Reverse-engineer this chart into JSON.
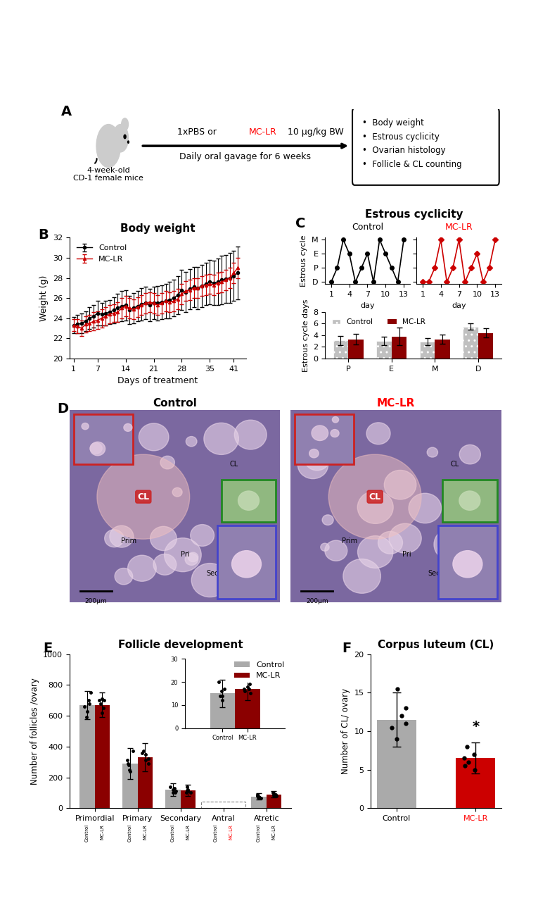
{
  "panel_A": {
    "bullet_items": [
      "Body weight",
      "Estrous cyclicity",
      "Ovarian histology",
      "Follicle & CL counting"
    ]
  },
  "panel_B": {
    "title": "Body weight",
    "xlabel": "Days of treatment",
    "ylabel": "Weight (g)",
    "ylim": [
      20,
      32
    ],
    "yticks": [
      20,
      22,
      24,
      26,
      28,
      30,
      32
    ],
    "xticks": [
      1,
      7,
      14,
      21,
      28,
      35,
      41
    ],
    "days": [
      1,
      2,
      3,
      4,
      5,
      6,
      7,
      8,
      9,
      10,
      11,
      12,
      13,
      14,
      15,
      16,
      17,
      18,
      19,
      20,
      21,
      22,
      23,
      24,
      25,
      26,
      27,
      28,
      29,
      30,
      31,
      32,
      33,
      34,
      35,
      36,
      37,
      38,
      39,
      40,
      41,
      42
    ],
    "control_mean": [
      23.3,
      23.4,
      23.5,
      23.7,
      24.0,
      24.2,
      24.5,
      24.4,
      24.5,
      24.6,
      24.8,
      25.0,
      25.2,
      25.3,
      24.8,
      25.0,
      25.2,
      25.4,
      25.5,
      25.3,
      25.5,
      25.5,
      25.6,
      25.7,
      25.8,
      26.0,
      26.3,
      26.8,
      26.6,
      26.9,
      27.1,
      27.0,
      27.2,
      27.4,
      27.6,
      27.5,
      27.6,
      27.8,
      27.9,
      28.0,
      28.2,
      28.5
    ],
    "control_err": [
      0.8,
      0.9,
      1.0,
      1.0,
      1.1,
      1.1,
      1.2,
      1.1,
      1.2,
      1.2,
      1.3,
      1.4,
      1.5,
      1.5,
      1.4,
      1.5,
      1.5,
      1.6,
      1.6,
      1.6,
      1.6,
      1.7,
      1.7,
      1.7,
      1.8,
      1.8,
      1.9,
      2.0,
      2.0,
      2.0,
      2.0,
      2.1,
      2.1,
      2.1,
      2.2,
      2.2,
      2.3,
      2.4,
      2.4,
      2.5,
      2.5,
      2.6
    ],
    "mclr_mean": [
      23.3,
      23.2,
      23.0,
      23.4,
      23.5,
      23.7,
      23.8,
      24.0,
      24.2,
      24.4,
      24.5,
      24.6,
      25.0,
      25.2,
      25.0,
      24.9,
      25.1,
      25.3,
      25.5,
      25.6,
      25.5,
      25.3,
      25.5,
      25.7,
      25.6,
      25.7,
      25.9,
      26.4,
      26.7,
      26.8,
      27.0,
      27.0,
      27.2,
      27.3,
      27.4,
      27.3,
      27.5,
      27.6,
      27.8,
      28.0,
      28.5,
      29.0
    ],
    "mclr_err": [
      0.6,
      0.7,
      0.8,
      0.8,
      0.8,
      0.9,
      0.9,
      0.9,
      0.9,
      0.9,
      0.9,
      1.0,
      1.0,
      1.0,
      1.0,
      1.0,
      1.0,
      1.0,
      1.0,
      1.0,
      1.0,
      1.0,
      1.0,
      1.0,
      1.0,
      1.0,
      1.0,
      1.0,
      1.0,
      1.0,
      1.0,
      1.0,
      1.0,
      1.0,
      1.0,
      1.0,
      1.0,
      1.0,
      1.0,
      1.0,
      1.0,
      1.0
    ],
    "control_color": "#000000",
    "mclr_color": "#cc0000"
  },
  "panel_C_top": {
    "title": "Estrous cyclicity",
    "ylabel": "Estrous cycle",
    "xlabel": "day",
    "ytick_labels": [
      "D",
      "P",
      "E",
      "M"
    ],
    "xticks": [
      1,
      4,
      7,
      10,
      13
    ],
    "control_days": [
      1,
      2,
      3,
      4,
      5,
      6,
      7,
      8,
      9,
      10,
      11,
      12,
      13
    ],
    "control_stages": [
      0,
      1,
      3,
      2,
      0,
      1,
      2,
      0,
      3,
      2,
      1,
      0,
      3
    ],
    "mclr_days": [
      1,
      2,
      3,
      4,
      5,
      6,
      7,
      8,
      9,
      10,
      11,
      12,
      13
    ],
    "mclr_stages": [
      0,
      0,
      1,
      3,
      0,
      1,
      3,
      0,
      1,
      2,
      0,
      1,
      3
    ],
    "control_color": "#000000",
    "mclr_color": "#cc0000"
  },
  "panel_C_bot": {
    "ylabel": "Estrous cycle days",
    "ylim": [
      0,
      8
    ],
    "yticks": [
      0,
      2,
      4,
      6,
      8
    ],
    "categories": [
      "P",
      "E",
      "M",
      "D"
    ],
    "control_vals": [
      3.1,
      3.0,
      2.9,
      5.5
    ],
    "control_err": [
      0.8,
      0.7,
      0.6,
      0.5
    ],
    "mclr_vals": [
      3.3,
      3.8,
      3.3,
      4.4
    ],
    "mclr_err": [
      0.9,
      1.5,
      0.8,
      0.8
    ],
    "control_color": "#c0c0c0",
    "mclr_color": "#8b0000"
  },
  "panel_E": {
    "title": "Follicle development",
    "ylabel": "Number of follicles /ovary",
    "ylim": [
      0,
      1000
    ],
    "yticks": [
      0,
      200,
      400,
      600,
      800,
      1000
    ],
    "categories": [
      "Primordial",
      "Primary",
      "Secondary",
      "Antral",
      "Atretic"
    ],
    "control_vals": [
      670,
      290,
      120,
      15,
      75
    ],
    "control_err": [
      90,
      100,
      40,
      6,
      20
    ],
    "mclr_vals": [
      670,
      330,
      115,
      17,
      90
    ],
    "mclr_err": [
      80,
      90,
      35,
      5,
      20
    ],
    "control_color": "#aaaaaa",
    "mclr_color": "#8b0000",
    "antral_ylim": [
      0,
      30
    ],
    "antral_yticks": [
      0,
      10,
      20,
      30
    ]
  },
  "panel_F": {
    "title": "Corpus luteum (CL)",
    "ylabel": "Number of CL/ ovary",
    "ylim": [
      0,
      20
    ],
    "yticks": [
      0,
      5,
      10,
      15,
      20
    ],
    "categories": [
      "Control",
      "MC-LR"
    ],
    "control_val": 11.5,
    "control_err": 3.5,
    "mclr_val": 6.5,
    "mclr_err": 2.0,
    "control_color": "#aaaaaa",
    "mclr_color": "#cc0000",
    "control_dots": [
      15.5,
      12.0,
      10.5,
      9.0,
      11.0,
      13.0
    ],
    "mclr_dots": [
      8.0,
      6.0,
      5.5,
      7.0,
      6.5,
      5.0
    ],
    "significance": "*"
  }
}
